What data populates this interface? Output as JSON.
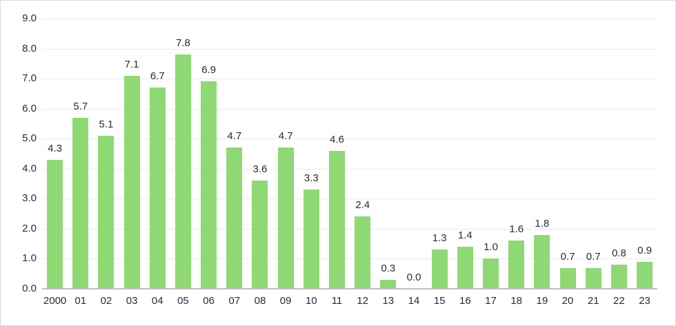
{
  "chart_data": {
    "type": "bar",
    "title": "",
    "xlabel": "",
    "ylabel": "",
    "categories": [
      "2000",
      "01",
      "02",
      "03",
      "04",
      "05",
      "06",
      "07",
      "08",
      "09",
      "10",
      "11",
      "12",
      "13",
      "14",
      "15",
      "16",
      "17",
      "18",
      "19",
      "20",
      "21",
      "22",
      "23"
    ],
    "values": [
      4.3,
      5.7,
      5.1,
      7.1,
      6.7,
      7.8,
      6.9,
      4.7,
      3.6,
      4.7,
      3.3,
      4.6,
      2.4,
      0.3,
      0.0,
      1.3,
      1.4,
      1.0,
      1.6,
      1.8,
      0.7,
      0.7,
      0.8,
      0.9
    ],
    "data_labels": [
      "4.3",
      "5.7",
      "5.1",
      "7.1",
      "6.7",
      "7.8",
      "6.9",
      "4.7",
      "3.6",
      "4.7",
      "3.3",
      "4.6",
      "2.4",
      "0.3",
      "0.0",
      "1.3",
      "1.4",
      "1.0",
      "1.6",
      "1.8",
      "0.7",
      "0.7",
      "0.8",
      "0.9"
    ],
    "ylim": [
      0.0,
      9.0
    ],
    "ytick_step": 1.0,
    "ytick_labels": [
      "0.0",
      "1.0",
      "2.0",
      "3.0",
      "4.0",
      "5.0",
      "6.0",
      "7.0",
      "8.0",
      "9.0"
    ],
    "grid": true,
    "legend": "none",
    "colors": {
      "bar_fill": "#8ED973",
      "gridline": "#EAEAEA",
      "axis_line": "#BFBFBF",
      "text": "#2B2B2B",
      "background": "#FFFFFF",
      "frame_border": "#D9D9D9"
    }
  }
}
